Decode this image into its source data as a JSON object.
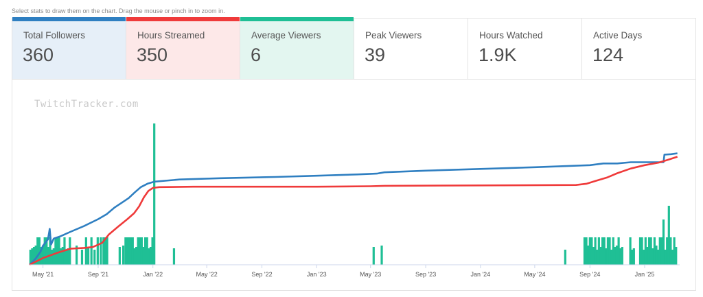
{
  "hint": "Select stats to draw them on the chart. Drag the mouse or pinch in to zoom in.",
  "stats": [
    {
      "label": "Total Followers",
      "value": "360",
      "active": true,
      "color": "#2f7fc1",
      "bg": "#e6eff8"
    },
    {
      "label": "Hours Streamed",
      "value": "350",
      "active": true,
      "color": "#ef3a3a",
      "bg": "#fde8e8"
    },
    {
      "label": "Average Viewers",
      "value": "6",
      "active": true,
      "color": "#1fbf95",
      "bg": "#e3f6f0"
    },
    {
      "label": "Peak Viewers",
      "value": "39",
      "active": false,
      "color": "#cccccc",
      "bg": "#ffffff"
    },
    {
      "label": "Hours Watched",
      "value": "1.9K",
      "active": false,
      "color": "#cccccc",
      "bg": "#ffffff"
    },
    {
      "label": "Active Days",
      "value": "124",
      "active": false,
      "color": "#cccccc",
      "bg": "#ffffff"
    }
  ],
  "watermark": "TwitchTracker.com",
  "chart_data": {
    "type": "line",
    "x_axis": "date",
    "x_range": [
      "2021-04-01",
      "2025-03-20"
    ],
    "x_ticks": [
      "May '21",
      "Sep '21",
      "Jan '22",
      "May '22",
      "Sep '22",
      "Jan '23",
      "May '23",
      "Sep '23",
      "Jan '24",
      "May '24",
      "Sep '24",
      "Jan '25"
    ],
    "x_tick_dates": [
      "2021-05-01",
      "2021-09-01",
      "2022-01-01",
      "2022-05-01",
      "2022-09-01",
      "2023-01-01",
      "2023-05-01",
      "2023-09-01",
      "2024-01-01",
      "2024-05-01",
      "2024-09-01",
      "2025-01-01"
    ],
    "grid": false,
    "legend": "none",
    "series": [
      {
        "name": "Total Followers",
        "color": "#2f7fc1",
        "type": "line",
        "ylim": [
          0,
          390
        ],
        "points": [
          [
            "2021-04-01",
            0
          ],
          [
            "2021-04-15",
            15
          ],
          [
            "2021-04-25",
            30
          ],
          [
            "2021-05-01",
            45
          ],
          [
            "2021-05-08",
            55
          ],
          [
            "2021-05-12",
            60
          ],
          [
            "2021-05-16",
            85
          ],
          [
            "2021-05-19",
            48
          ],
          [
            "2021-05-25",
            62
          ],
          [
            "2021-06-10",
            68
          ],
          [
            "2021-07-01",
            78
          ],
          [
            "2021-08-01",
            92
          ],
          [
            "2021-09-01",
            108
          ],
          [
            "2021-09-20",
            120
          ],
          [
            "2021-10-08",
            136
          ],
          [
            "2021-10-25",
            148
          ],
          [
            "2021-11-08",
            158
          ],
          [
            "2021-11-22",
            172
          ],
          [
            "2021-12-05",
            184
          ],
          [
            "2021-12-20",
            192
          ],
          [
            "2022-01-05",
            197
          ],
          [
            "2022-03-01",
            202
          ],
          [
            "2022-06-01",
            205
          ],
          [
            "2022-10-01",
            208
          ],
          [
            "2023-01-01",
            211
          ],
          [
            "2023-04-01",
            214
          ],
          [
            "2023-05-15",
            216
          ],
          [
            "2023-06-01",
            219
          ],
          [
            "2023-09-01",
            223
          ],
          [
            "2024-01-01",
            227
          ],
          [
            "2024-05-01",
            231
          ],
          [
            "2024-09-01",
            236
          ],
          [
            "2024-10-01",
            240
          ],
          [
            "2024-11-01",
            240
          ],
          [
            "2024-12-01",
            243
          ],
          [
            "2025-02-01",
            243
          ],
          [
            "2025-02-12",
            243
          ],
          [
            "2025-02-14",
            261
          ],
          [
            "2025-03-01",
            262
          ],
          [
            "2025-03-15",
            264
          ]
        ]
      },
      {
        "name": "Hours Streamed",
        "color": "#ef3a3a",
        "type": "line",
        "ylim": [
          0,
          390
        ],
        "points": [
          [
            "2021-04-01",
            0
          ],
          [
            "2021-05-01",
            16
          ],
          [
            "2021-06-01",
            28
          ],
          [
            "2021-07-01",
            38
          ],
          [
            "2021-08-01",
            40
          ],
          [
            "2021-08-20",
            42
          ],
          [
            "2021-09-10",
            52
          ],
          [
            "2021-09-25",
            72
          ],
          [
            "2021-10-15",
            90
          ],
          [
            "2021-11-05",
            108
          ],
          [
            "2021-11-20",
            122
          ],
          [
            "2021-12-01",
            138
          ],
          [
            "2021-12-12",
            160
          ],
          [
            "2021-12-22",
            175
          ],
          [
            "2022-01-01",
            182
          ],
          [
            "2022-01-15",
            184
          ],
          [
            "2022-04-01",
            185
          ],
          [
            "2022-09-01",
            185
          ],
          [
            "2023-01-01",
            185
          ],
          [
            "2023-05-01",
            186
          ],
          [
            "2023-06-01",
            187
          ],
          [
            "2024-01-01",
            188
          ],
          [
            "2024-08-01",
            189
          ],
          [
            "2024-08-25",
            192
          ],
          [
            "2024-09-15",
            199
          ],
          [
            "2024-10-10",
            207
          ],
          [
            "2024-11-01",
            217
          ],
          [
            "2024-12-01",
            228
          ],
          [
            "2025-01-01",
            236
          ],
          [
            "2025-02-01",
            242
          ],
          [
            "2025-02-20",
            248
          ],
          [
            "2025-03-15",
            256
          ]
        ]
      },
      {
        "name": "Average Viewers",
        "color": "#1fbf95",
        "type": "bar",
        "ylim": [
          0,
          10
        ],
        "bars": [
          [
            "2021-04-03",
            1
          ],
          [
            "2021-04-07",
            1
          ],
          [
            "2021-04-11",
            1
          ],
          [
            "2021-04-15",
            1
          ],
          [
            "2021-04-19",
            1
          ],
          [
            "2021-04-23",
            1
          ],
          [
            "2021-04-27",
            1
          ],
          [
            "2021-05-01",
            1
          ],
          [
            "2021-05-05",
            1
          ],
          [
            "2021-05-09",
            1
          ],
          [
            "2021-05-13",
            1
          ],
          [
            "2021-05-17",
            1
          ],
          [
            "2021-05-21",
            1
          ],
          [
            "2021-05-25",
            1
          ],
          [
            "2021-05-29",
            1
          ],
          [
            "2021-06-02",
            1
          ],
          [
            "2021-06-06",
            1
          ],
          [
            "2021-06-10",
            1
          ],
          [
            "2021-06-14",
            1
          ],
          [
            "2021-06-18",
            1
          ],
          [
            "2021-06-22",
            1
          ],
          [
            "2021-06-26",
            1
          ],
          [
            "2021-06-30",
            1
          ],
          [
            "2021-07-15",
            1
          ],
          [
            "2021-07-27",
            1
          ],
          [
            "2021-08-05",
            1
          ],
          [
            "2021-08-10",
            1
          ],
          [
            "2021-08-17",
            1
          ],
          [
            "2021-08-24",
            1
          ],
          [
            "2021-08-31",
            1
          ],
          [
            "2021-09-07",
            1
          ],
          [
            "2021-09-13",
            1
          ],
          [
            "2021-09-17",
            1
          ],
          [
            "2021-09-21",
            1
          ],
          [
            "2021-10-19",
            1
          ],
          [
            "2021-10-27",
            1
          ],
          [
            "2021-11-01",
            1
          ],
          [
            "2021-11-05",
            1
          ],
          [
            "2021-11-09",
            1
          ],
          [
            "2021-11-13",
            1
          ],
          [
            "2021-11-17",
            1
          ],
          [
            "2021-11-21",
            1
          ],
          [
            "2021-11-25",
            1
          ],
          [
            "2021-11-29",
            1
          ],
          [
            "2021-12-03",
            1
          ],
          [
            "2021-12-07",
            1
          ],
          [
            "2021-12-11",
            1
          ],
          [
            "2021-12-15",
            1
          ],
          [
            "2021-12-19",
            1
          ],
          [
            "2021-12-23",
            1
          ],
          [
            "2021-12-27",
            1
          ],
          [
            "2021-12-31",
            1
          ],
          [
            "2022-01-04",
            1
          ],
          [
            "2022-02-17",
            1
          ],
          [
            "2023-05-08",
            1
          ],
          [
            "2023-05-26",
            1
          ],
          [
            "2024-07-08",
            1
          ],
          [
            "2024-08-20",
            1
          ],
          [
            "2024-08-24",
            1
          ],
          [
            "2024-08-28",
            1
          ],
          [
            "2024-09-01",
            1
          ],
          [
            "2024-09-05",
            1
          ],
          [
            "2024-09-09",
            1
          ],
          [
            "2024-09-13",
            1
          ],
          [
            "2024-09-17",
            1
          ],
          [
            "2024-09-21",
            1
          ],
          [
            "2024-09-25",
            1
          ],
          [
            "2024-09-29",
            1
          ],
          [
            "2024-10-03",
            1
          ],
          [
            "2024-10-07",
            1
          ],
          [
            "2024-10-11",
            1
          ],
          [
            "2024-10-15",
            1
          ],
          [
            "2024-10-19",
            1
          ],
          [
            "2024-10-23",
            1
          ],
          [
            "2024-10-27",
            1
          ],
          [
            "2024-10-31",
            1
          ],
          [
            "2024-11-04",
            1
          ],
          [
            "2024-11-08",
            1
          ],
          [
            "2024-11-12",
            1
          ],
          [
            "2024-11-30",
            1
          ],
          [
            "2024-12-04",
            1
          ],
          [
            "2024-12-08",
            1
          ],
          [
            "2024-12-22",
            1
          ],
          [
            "2024-12-26",
            1
          ],
          [
            "2024-12-30",
            1
          ],
          [
            "2025-01-03",
            1
          ],
          [
            "2025-01-07",
            1
          ],
          [
            "2025-01-11",
            1
          ],
          [
            "2025-01-15",
            1
          ],
          [
            "2025-01-19",
            1
          ],
          [
            "2025-01-23",
            1
          ],
          [
            "2025-01-27",
            1
          ],
          [
            "2025-01-31",
            1
          ],
          [
            "2025-02-04",
            1
          ],
          [
            "2025-02-08",
            1
          ],
          [
            "2025-02-12",
            1
          ],
          [
            "2025-02-16",
            1
          ],
          [
            "2025-02-20",
            1
          ],
          [
            "2025-02-24",
            1
          ],
          [
            "2025-02-28",
            1
          ],
          [
            "2025-03-04",
            1
          ],
          [
            "2025-03-08",
            1
          ],
          [
            "2025-03-12",
            1
          ]
        ],
        "bar_values": [
          1,
          1,
          1,
          1,
          1,
          1,
          1,
          1,
          1,
          1,
          1,
          1,
          1,
          1,
          1,
          1,
          1,
          1,
          1,
          1,
          1,
          1,
          1,
          1,
          1,
          1,
          1,
          1,
          1,
          1,
          1,
          1,
          1,
          1,
          1,
          1,
          1,
          1,
          1,
          1,
          1,
          1,
          1,
          1,
          1,
          1,
          1,
          1,
          1,
          1,
          1,
          1,
          1,
          1,
          1,
          1,
          1,
          1,
          1,
          1,
          1,
          1,
          1,
          1,
          1,
          1,
          1,
          1,
          1,
          1,
          1,
          1,
          1,
          1,
          1,
          1,
          1,
          1,
          1,
          1,
          1,
          1,
          1,
          1,
          1,
          1,
          1,
          1,
          1,
          1,
          1,
          1,
          1,
          1,
          1,
          1,
          1,
          1,
          1,
          1,
          1,
          1
        ],
        "values": [
          1,
          1,
          1,
          1,
          2,
          2,
          1,
          1,
          2,
          2,
          1,
          2,
          1,
          1,
          2,
          2,
          2,
          1,
          1,
          2,
          1,
          1,
          2,
          1,
          1,
          2,
          1,
          2,
          1,
          2,
          2,
          2,
          2,
          2,
          1,
          1,
          2,
          2,
          2,
          2,
          2,
          1,
          1,
          2,
          2,
          2,
          1,
          2,
          2,
          1,
          1,
          2,
          10,
          1,
          1,
          1,
          1,
          2,
          2,
          1,
          2,
          2,
          1,
          2,
          1,
          2,
          1,
          2,
          2,
          1,
          2,
          2,
          1,
          2,
          1,
          1,
          2,
          1,
          1,
          2,
          1,
          1,
          2,
          2,
          1,
          2,
          1,
          2,
          2,
          1,
          2,
          1,
          1,
          2,
          2,
          3,
          1,
          2,
          4,
          2,
          1,
          2
        ]
      }
    ]
  }
}
